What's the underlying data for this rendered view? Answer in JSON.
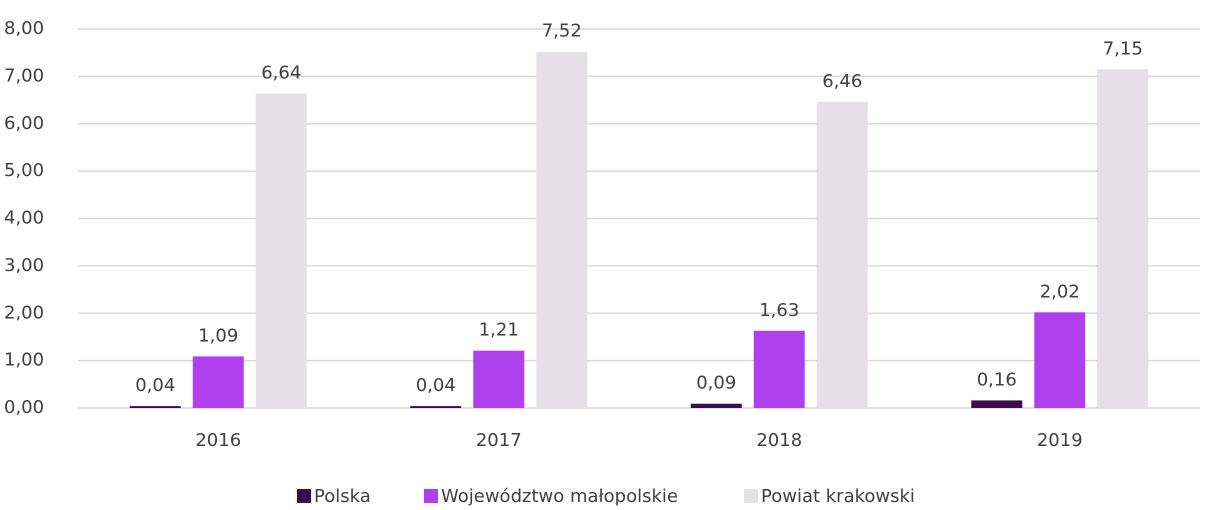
{
  "chart_data": {
    "type": "bar",
    "categories": [
      "2016",
      "2017",
      "2018",
      "2019"
    ],
    "series": [
      {
        "name": "Polska",
        "color": "#3b0d4e",
        "values": [
          0.04,
          0.04,
          0.09,
          0.16
        ],
        "value_labels": [
          "0,04",
          "0,04",
          "0,09",
          "0,16"
        ]
      },
      {
        "name": "Województwo małopolskie",
        "color": "#b040ee",
        "values": [
          1.09,
          1.21,
          1.63,
          2.02
        ],
        "value_labels": [
          "1,09",
          "1,21",
          "1,63",
          "2,02"
        ]
      },
      {
        "name": "Powiat krakowski",
        "color": "#e4e0e6",
        "values": [
          6.64,
          7.52,
          6.46,
          7.15
        ],
        "value_labels": [
          "6,64",
          "7,52",
          "6,46",
          "7,15"
        ]
      }
    ],
    "ylim": [
      0,
      8
    ],
    "yticks": [
      {
        "value": 0,
        "label": "0,00"
      },
      {
        "value": 1,
        "label": "1,00"
      },
      {
        "value": 2,
        "label": "2,00"
      },
      {
        "value": 3,
        "label": "3,00"
      },
      {
        "value": 4,
        "label": "4,00"
      },
      {
        "value": 5,
        "label": "5,00"
      },
      {
        "value": 6,
        "label": "6,00"
      },
      {
        "value": 7,
        "label": "7,00"
      },
      {
        "value": 8,
        "label": "8,00"
      }
    ],
    "grid": true,
    "legend": "bottom"
  }
}
